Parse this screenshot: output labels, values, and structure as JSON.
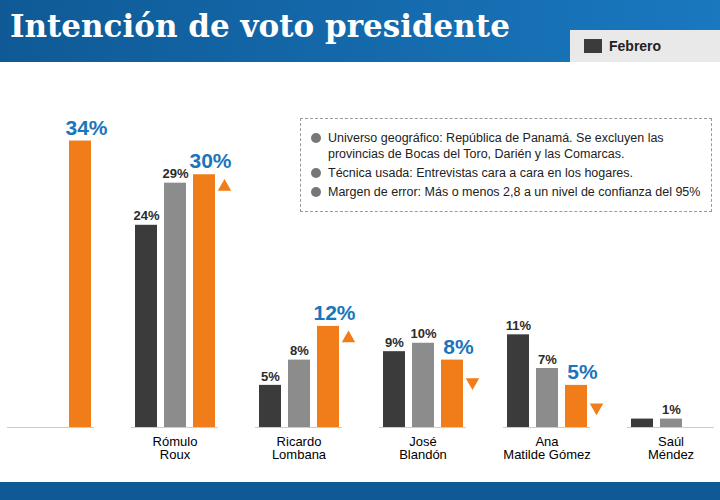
{
  "chart_data": {
    "type": "bar",
    "title": "Intención de voto presidente",
    "categories": [
      null,
      "Rómulo Roux",
      "Ricardo Lombana",
      "José Blandón",
      "Ana Matilde Gómez",
      "Saúl Méndez"
    ],
    "series": [
      {
        "name": "Febrero",
        "color": "#3b3b3b",
        "values": [
          null,
          24,
          5,
          9,
          11,
          1
        ],
        "value_labels": [
          null,
          "24%",
          "5%",
          "9%",
          "11%",
          null
        ]
      },
      {
        "name": null,
        "color": "#8c8c8c",
        "values": [
          null,
          29,
          8,
          10,
          7,
          1
        ],
        "value_labels": [
          null,
          "29%",
          "8%",
          "10%",
          "7%",
          "1%"
        ]
      },
      {
        "name": null,
        "color": "#f07d1a",
        "values": [
          34,
          30,
          12,
          8,
          5,
          null
        ],
        "value_labels": [
          "34%",
          "30%",
          "12%",
          "8%",
          "5%",
          null
        ]
      }
    ],
    "annotations": [
      "Universo geográfico: República de Panamá. Se excluyen las provincias de Bocas del Toro, Darién y las Comarcas.",
      "Técnica usada: Entrevistas cara a cara en los hogares.",
      "Margen de error: Más o menos 2,8 a un nivel de confianza del 95%"
    ],
    "ylim": [
      0,
      40
    ],
    "yticks": [],
    "tick_labels": "x",
    "data_labels": true,
    "legend": "top-right"
  }
}
